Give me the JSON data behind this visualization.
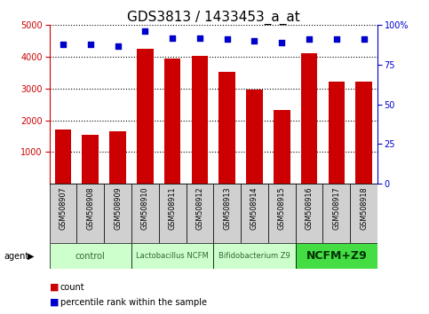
{
  "title": "GDS3813 / 1433453_a_at",
  "samples": [
    "GSM508907",
    "GSM508908",
    "GSM508909",
    "GSM508910",
    "GSM508911",
    "GSM508912",
    "GSM508913",
    "GSM508914",
    "GSM508915",
    "GSM508916",
    "GSM508917",
    "GSM508918"
  ],
  "counts": [
    1720,
    1530,
    1660,
    4250,
    3950,
    4020,
    3520,
    2980,
    2330,
    4100,
    3220,
    3220
  ],
  "percentiles": [
    88,
    88,
    87,
    96,
    92,
    92,
    91,
    90,
    89,
    91,
    91,
    91
  ],
  "bar_color": "#cc0000",
  "dot_color": "#0000cc",
  "ylim_left": [
    0,
    5000
  ],
  "ylim_right": [
    0,
    100
  ],
  "yticks_left": [
    1000,
    2000,
    3000,
    4000,
    5000
  ],
  "yticks_right": [
    0,
    25,
    50,
    75,
    100
  ],
  "group_labels": [
    "control",
    "Lactobacillus NCFM",
    "Bifidobacterium Z9",
    "NCFM+Z9"
  ],
  "group_starts": [
    0,
    3,
    6,
    9
  ],
  "group_ends": [
    2,
    5,
    8,
    11
  ],
  "group_colors": [
    "#ccffcc",
    "#ccffcc",
    "#ccffcc",
    "#44dd44"
  ],
  "group_text_colors": [
    "#336633",
    "#336633",
    "#336633",
    "#003300"
  ],
  "group_font_sizes": [
    7,
    6,
    6,
    9
  ],
  "group_font_weights": [
    "normal",
    "normal",
    "normal",
    "bold"
  ],
  "agent_label": "agent",
  "legend_count_label": "count",
  "legend_pct_label": "percentile rank within the sample",
  "bar_color_red": "#cc0000",
  "dot_color_blue": "#0000cc",
  "sample_bg": "#d0d0d0",
  "grid_style": "dotted",
  "title_fontsize": 11
}
